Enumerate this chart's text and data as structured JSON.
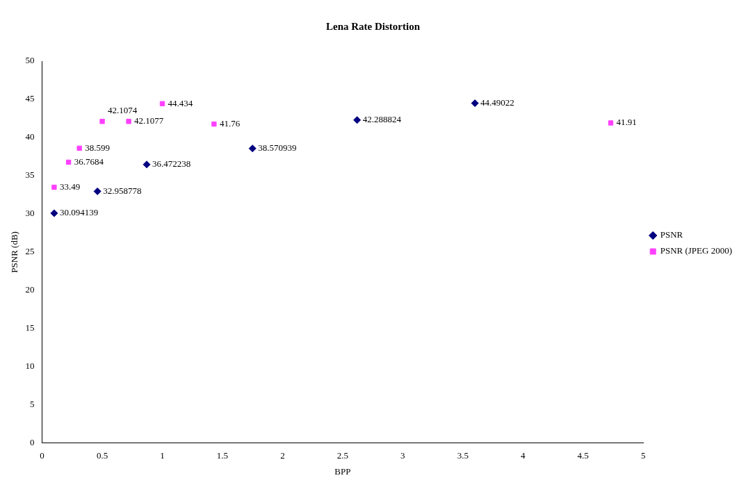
{
  "chart_data": {
    "type": "scatter",
    "title": "Lena Rate Distortion",
    "xlabel": "BPP",
    "ylabel": "PSNR (dB)",
    "series": [
      {
        "name": "PSNR",
        "color": "#000080",
        "marker": "diamond",
        "x": [
          0.1,
          0.46,
          0.87,
          1.75,
          2.62,
          3.6
        ],
        "values": [
          30.094139,
          32.958778,
          36.472238,
          38.570939,
          42.288824,
          44.49022
        ]
      },
      {
        "name": "PSNR (JPEG 2000)",
        "color": "#ff40ff",
        "marker": "square",
        "x": [
          0.1,
          0.22,
          0.31,
          0.5,
          0.72,
          1.0,
          1.43,
          4.73
        ],
        "values": [
          33.49,
          36.7684,
          38.599,
          42.1074,
          42.1077,
          44.434,
          41.76,
          41.91
        ]
      }
    ],
    "data_labels": true,
    "xlim": [
      0,
      5
    ],
    "xticks": [
      0,
      0.5,
      1,
      1.5,
      2,
      2.5,
      3,
      3.5,
      4,
      4.5,
      5
    ],
    "ylim": [
      0,
      50
    ],
    "yticks": [
      0,
      5,
      10,
      15,
      20,
      25,
      30,
      35,
      40,
      45,
      50
    ],
    "grid": false,
    "legend": "right"
  }
}
